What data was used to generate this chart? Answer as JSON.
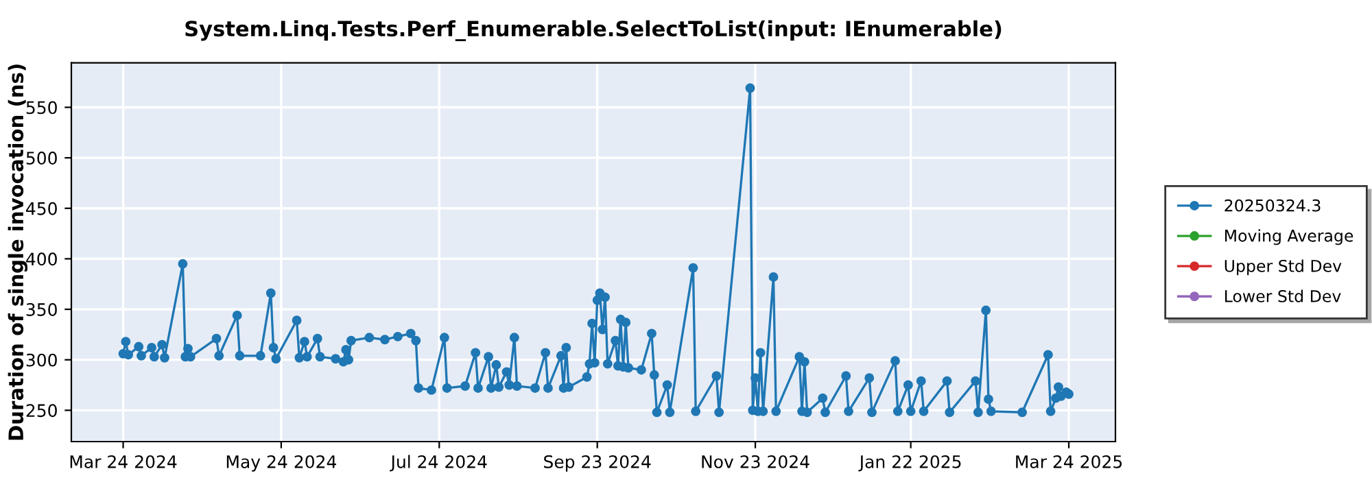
{
  "chart_data": {
    "type": "line",
    "title": "System.Linq.Tests.Perf_Enumerable.SelectToList(input: IEnumerable)",
    "ylabel": "Duration of single invocation (ns)",
    "xlim": [
      "2024-03-04",
      "2025-04-11"
    ],
    "xticks": [
      {
        "value": "2024-03-24",
        "label": "Mar 24 2024"
      },
      {
        "value": "2024-05-24",
        "label": "May 24 2024"
      },
      {
        "value": "2024-07-24",
        "label": "Jul 24 2024"
      },
      {
        "value": "2024-09-23",
        "label": "Sep 23 2024"
      },
      {
        "value": "2024-11-23",
        "label": "Nov 23 2024"
      },
      {
        "value": "2025-01-22",
        "label": "Jan 22 2025"
      },
      {
        "value": "2025-03-24",
        "label": "Mar 24 2025"
      }
    ],
    "ylim": [
      219,
      594
    ],
    "yticks": [
      250,
      300,
      350,
      400,
      450,
      500,
      550
    ],
    "grid": true,
    "legend": "right",
    "marker": "circle",
    "line_style": "solid",
    "series": [
      {
        "name": "20250324.3",
        "color": "#1f77b4",
        "x": [
          "2024-03-24",
          "2024-03-25",
          "2024-03-26",
          "2024-03-30",
          "2024-03-31",
          "2024-04-04",
          "2024-04-05",
          "2024-04-08",
          "2024-04-09",
          "2024-04-16",
          "2024-04-17",
          "2024-04-18",
          "2024-04-19",
          "2024-04-29",
          "2024-04-30",
          "2024-05-07",
          "2024-05-08",
          "2024-05-16",
          "2024-05-20",
          "2024-05-21",
          "2024-05-22",
          "2024-05-30",
          "2024-05-31",
          "2024-06-02",
          "2024-06-03",
          "2024-06-07",
          "2024-06-08",
          "2024-06-14",
          "2024-06-17",
          "2024-06-18",
          "2024-06-19",
          "2024-06-20",
          "2024-06-27",
          "2024-07-03",
          "2024-07-08",
          "2024-07-13",
          "2024-07-15",
          "2024-07-16",
          "2024-07-21",
          "2024-07-26",
          "2024-07-27",
          "2024-08-03",
          "2024-08-07",
          "2024-08-08",
          "2024-08-12",
          "2024-08-13",
          "2024-08-15",
          "2024-08-16",
          "2024-08-19",
          "2024-08-20",
          "2024-08-22",
          "2024-08-23",
          "2024-08-30",
          "2024-09-03",
          "2024-09-04",
          "2024-09-09",
          "2024-09-10",
          "2024-09-11",
          "2024-09-12",
          "2024-09-19",
          "2024-09-20",
          "2024-09-21",
          "2024-09-22",
          "2024-09-23",
          "2024-09-24",
          "2024-09-25",
          "2024-09-26",
          "2024-09-27",
          "2024-09-30",
          "2024-10-01",
          "2024-10-02",
          "2024-10-03",
          "2024-10-04",
          "2024-10-05",
          "2024-10-10",
          "2024-10-14",
          "2024-10-15",
          "2024-10-16",
          "2024-10-20",
          "2024-10-21",
          "2024-10-30",
          "2024-10-31",
          "2024-11-08",
          "2024-11-09",
          "2024-11-21",
          "2024-11-22",
          "2024-11-23",
          "2024-11-24",
          "2024-11-25",
          "2024-11-26",
          "2024-11-30",
          "2024-12-01",
          "2024-12-10",
          "2024-12-11",
          "2024-12-12",
          "2024-12-13",
          "2024-12-19",
          "2024-12-20",
          "2024-12-28",
          "2024-12-29",
          "2025-01-06",
          "2025-01-07",
          "2025-01-16",
          "2025-01-17",
          "2025-01-21",
          "2025-01-22",
          "2025-01-26",
          "2025-01-27",
          "2025-02-05",
          "2025-02-06",
          "2025-02-16",
          "2025-02-17",
          "2025-02-20",
          "2025-02-21",
          "2025-02-22",
          "2025-03-06",
          "2025-03-16",
          "2025-03-17",
          "2025-03-19",
          "2025-03-20",
          "2025-03-21",
          "2025-03-23",
          "2025-03-24"
        ],
        "values": [
          306,
          318,
          305,
          313,
          304,
          312,
          303,
          315,
          302,
          395,
          303,
          311,
          303,
          321,
          304,
          344,
          304,
          304,
          366,
          312,
          301,
          339,
          302,
          318,
          303,
          321,
          303,
          301,
          298,
          310,
          300,
          319,
          322,
          320,
          323,
          326,
          319,
          272,
          270,
          322,
          272,
          274,
          307,
          272,
          303,
          272,
          295,
          273,
          288,
          275,
          322,
          274,
          272,
          307,
          272,
          304,
          272,
          312,
          273,
          283,
          296,
          336,
          297,
          359,
          366,
          330,
          362,
          296,
          319,
          294,
          340,
          293,
          337,
          292,
          290,
          326,
          285,
          248,
          275,
          248,
          391,
          249,
          284,
          248,
          569,
          250,
          282,
          249,
          307,
          249,
          382,
          249,
          303,
          249,
          298,
          248,
          262,
          248,
          284,
          249,
          282,
          248,
          299,
          249,
          275,
          249,
          279,
          249,
          279,
          248,
          279,
          248,
          349,
          261,
          249,
          248,
          305,
          249,
          262,
          273,
          264,
          268,
          266
        ]
      },
      {
        "name": "Moving Average",
        "color": "#2ca02c"
      },
      {
        "name": "Upper Std Dev",
        "color": "#d62728"
      },
      {
        "name": "Lower Std Dev",
        "color": "#9467bd"
      }
    ]
  }
}
